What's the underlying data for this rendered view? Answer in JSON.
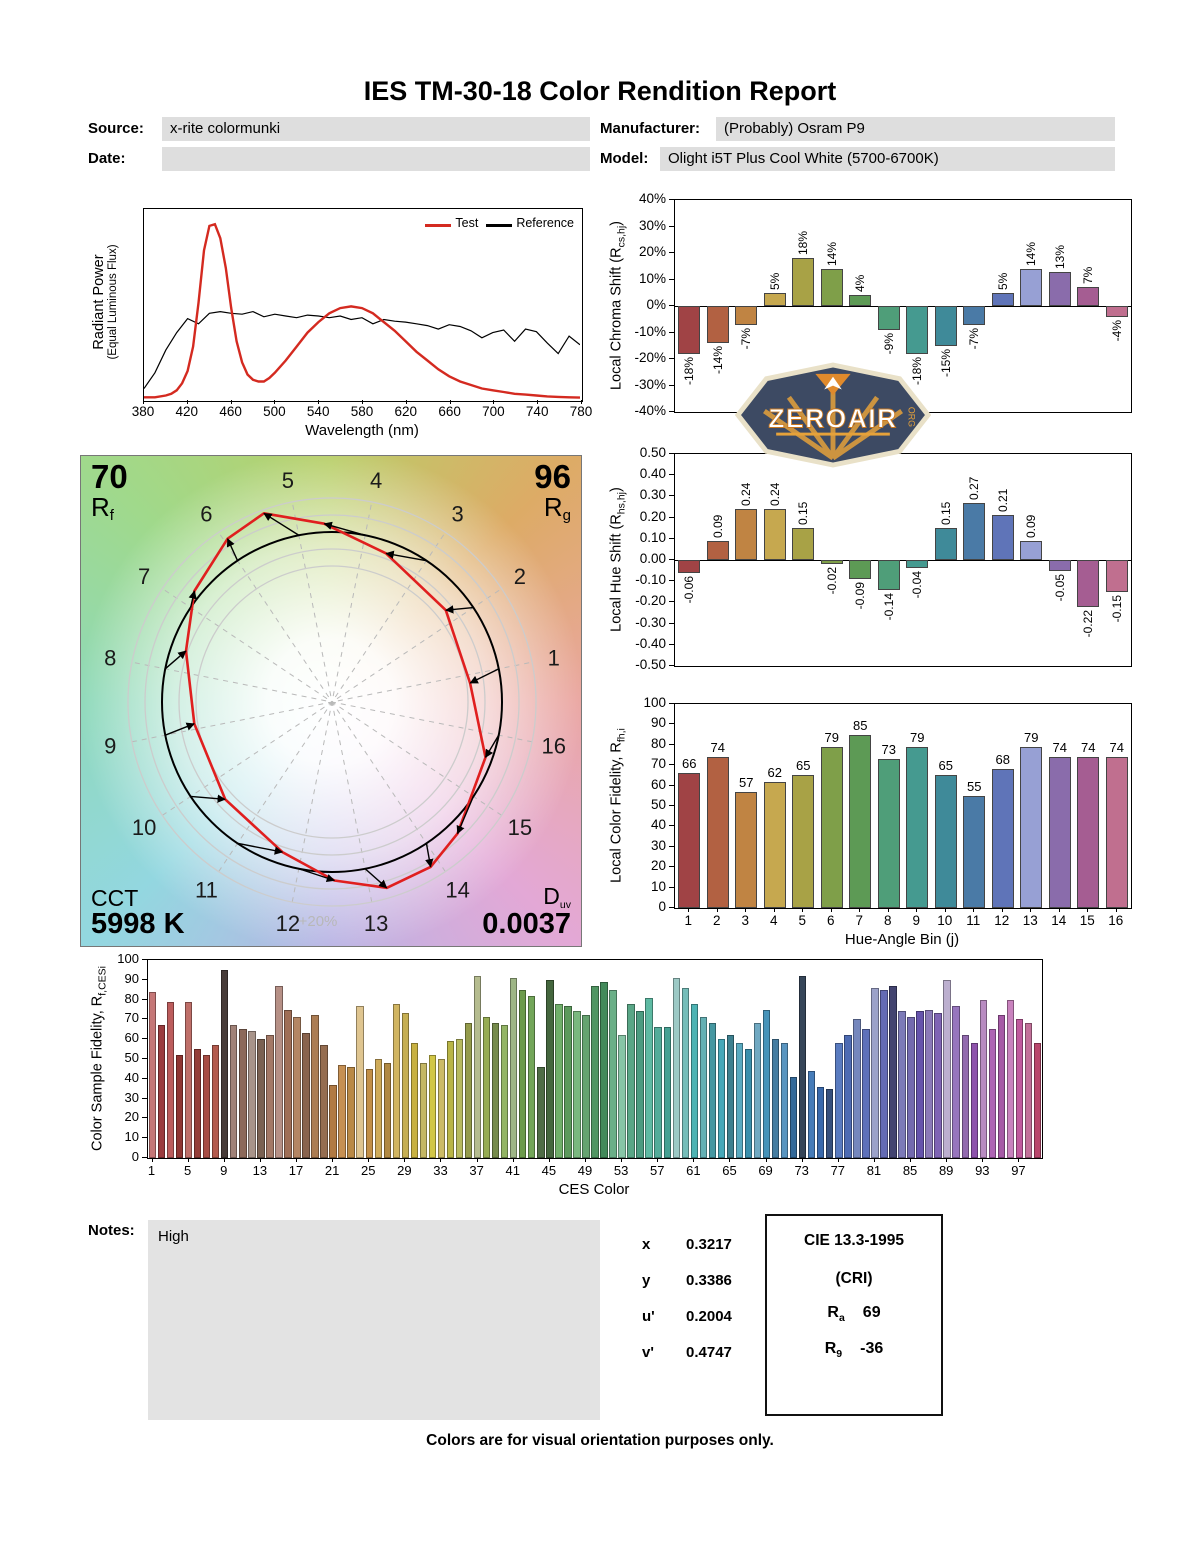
{
  "title": "IES TM-30-18 Color Rendition Report",
  "header": {
    "source_label": "Source:",
    "source_value": "x-rite colormunki",
    "manufacturer_label": "Manufacturer:",
    "manufacturer_value": "(Probably) Osram P9",
    "date_label": "Date:",
    "date_value": "",
    "model_label": "Model:",
    "model_value": "Olight i5T Plus Cool White (5700-6700K)"
  },
  "logo": {
    "wordmark": "ZEROAIR",
    "tld": "ORG"
  },
  "cvg": {
    "rf_value": "70",
    "rf_main": "R",
    "rf_sub": "f",
    "rg_value": "96",
    "rg_main": "R",
    "rg_sub": "g",
    "cct_label": "CCT",
    "cct_value": "5998 K",
    "duv_main": "D",
    "duv_sub": "uv",
    "duv_value": "0.0037",
    "ring_label": "+20%",
    "bin_numbers": [
      "1",
      "2",
      "3",
      "4",
      "5",
      "6",
      "7",
      "8",
      "9",
      "10",
      "11",
      "12",
      "13",
      "14",
      "15",
      "16"
    ]
  },
  "chart_data": [
    {
      "id": "spd",
      "type": "line",
      "ylabel": "Radiant Power",
      "ylabel2": "(Equal Luminous Flux)",
      "xlabel": "Wavelength (nm)",
      "xlim": [
        380,
        780
      ],
      "xticks": [
        "380",
        "420",
        "460",
        "500",
        "540",
        "580",
        "620",
        "660",
        "700",
        "740",
        "780"
      ],
      "legend": [
        {
          "label": "Test",
          "color": "#d42a20"
        },
        {
          "label": "Reference",
          "color": "#000000"
        }
      ],
      "series": [
        {
          "name": "Reference",
          "color": "#000000",
          "width": 1.2,
          "x": [
            380,
            390,
            400,
            410,
            420,
            430,
            440,
            450,
            460,
            470,
            480,
            490,
            500,
            510,
            520,
            530,
            540,
            550,
            560,
            570,
            580,
            590,
            600,
            610,
            620,
            630,
            640,
            650,
            660,
            670,
            680,
            690,
            700,
            710,
            720,
            730,
            740,
            750,
            760,
            770,
            780
          ],
          "y": [
            0.06,
            0.15,
            0.28,
            0.38,
            0.46,
            0.43,
            0.49,
            0.5,
            0.49,
            0.485,
            0.5,
            0.47,
            0.485,
            0.475,
            0.465,
            0.48,
            0.475,
            0.465,
            0.475,
            0.455,
            0.465,
            0.43,
            0.455,
            0.445,
            0.44,
            0.43,
            0.42,
            0.4,
            0.425,
            0.415,
            0.39,
            0.35,
            0.38,
            0.395,
            0.33,
            0.4,
            0.385,
            0.32,
            0.26,
            0.36,
            0.31
          ]
        },
        {
          "name": "Test",
          "color": "#d42a20",
          "width": 2.4,
          "x": [
            380,
            390,
            400,
            405,
            410,
            415,
            420,
            425,
            430,
            435,
            440,
            445,
            450,
            455,
            460,
            465,
            470,
            475,
            480,
            485,
            490,
            495,
            500,
            510,
            520,
            530,
            540,
            550,
            560,
            570,
            580,
            590,
            600,
            610,
            620,
            630,
            640,
            650,
            660,
            670,
            680,
            690,
            700,
            710,
            720,
            730,
            740,
            750,
            760,
            770,
            780
          ],
          "y": [
            0.01,
            0.01,
            0.02,
            0.03,
            0.05,
            0.09,
            0.16,
            0.3,
            0.55,
            0.85,
            0.99,
            1.0,
            0.92,
            0.75,
            0.52,
            0.33,
            0.21,
            0.14,
            0.11,
            0.1,
            0.1,
            0.12,
            0.15,
            0.22,
            0.3,
            0.38,
            0.44,
            0.49,
            0.52,
            0.53,
            0.52,
            0.49,
            0.44,
            0.39,
            0.33,
            0.27,
            0.22,
            0.17,
            0.13,
            0.1,
            0.08,
            0.06,
            0.05,
            0.04,
            0.03,
            0.025,
            0.02,
            0.015,
            0.012,
            0.01,
            0.008
          ]
        }
      ]
    },
    {
      "id": "chroma_shift",
      "type": "bar",
      "ylabel_pre": "Local Chroma Shift (R",
      "ylabel_sub": "cs,hj",
      "ylabel_post": ")",
      "ylim": [
        -40,
        40
      ],
      "yticks": [
        "40%",
        "30%",
        "20%",
        "10%",
        "0%",
        "-10%",
        "-20%",
        "-30%",
        "-40%"
      ],
      "categories": [
        "1",
        "2",
        "3",
        "4",
        "5",
        "6",
        "7",
        "8",
        "9",
        "10",
        "11",
        "12",
        "13",
        "14",
        "15",
        "16"
      ],
      "values": [
        -18,
        -14,
        -7,
        5,
        18,
        14,
        4,
        -9,
        -18,
        -15,
        -7,
        5,
        14,
        13,
        7,
        -4
      ],
      "labels": [
        "-18%",
        "-14%",
        "-7%",
        "5%",
        "18%",
        "14%",
        "4%",
        "-9%",
        "-18%",
        "-15%",
        "-7%",
        "5%",
        "14%",
        "13%",
        "7%",
        "-4%"
      ],
      "colors": [
        "#a04345",
        "#b26142",
        "#c08443",
        "#c6a84f",
        "#a8a246",
        "#7f9f49",
        "#5d9a55",
        "#4f9e79",
        "#459a90",
        "#3f8a99",
        "#4a7aa6",
        "#5f74b8",
        "#97a0d4",
        "#8a6cab",
        "#a55d92",
        "#c06f8f"
      ]
    },
    {
      "id": "hue_shift",
      "type": "bar",
      "ylabel_pre": "Local Hue Shift (R",
      "ylabel_sub": "hs,hj",
      "ylabel_post": ")",
      "ylim": [
        -0.5,
        0.5
      ],
      "yticks": [
        "0.50",
        "0.40",
        "0.30",
        "0.20",
        "0.10",
        "0.00",
        "-0.10",
        "-0.20",
        "-0.30",
        "-0.40",
        "-0.50"
      ],
      "categories": [
        "1",
        "2",
        "3",
        "4",
        "5",
        "6",
        "7",
        "8",
        "9",
        "10",
        "11",
        "12",
        "13",
        "14",
        "15",
        "16"
      ],
      "values": [
        -0.06,
        0.09,
        0.24,
        0.24,
        0.15,
        -0.02,
        -0.09,
        -0.14,
        -0.04,
        0.15,
        0.27,
        0.21,
        0.09,
        -0.05,
        -0.22,
        -0.15
      ],
      "labels": [
        "-0.06",
        "0.09",
        "0.24",
        "0.24",
        "0.15",
        "-0.02",
        "-0.09",
        "-0.14",
        "-0.04",
        "0.15",
        "0.27",
        "0.21",
        "0.09",
        "-0.05",
        "-0.22",
        "-0.15"
      ],
      "colors": [
        "#a04345",
        "#b26142",
        "#c08443",
        "#c6a84f",
        "#a8a246",
        "#7f9f49",
        "#5d9a55",
        "#4f9e79",
        "#459a90",
        "#3f8a99",
        "#4a7aa6",
        "#5f74b8",
        "#97a0d4",
        "#8a6cab",
        "#a55d92",
        "#c06f8f"
      ]
    },
    {
      "id": "local_fidelity",
      "type": "bar",
      "ylabel_pre": "Local Color Fidelity, R",
      "ylabel_sub": "fh,i",
      "ylabel_post": "",
      "xlabel": "Hue-Angle Bin (j)",
      "ylim": [
        0,
        100
      ],
      "yticks": [
        "100",
        "90",
        "80",
        "70",
        "60",
        "50",
        "40",
        "30",
        "20",
        "10",
        "0"
      ],
      "xticks": [
        "1",
        "2",
        "3",
        "4",
        "5",
        "6",
        "7",
        "8",
        "9",
        "10",
        "11",
        "12",
        "13",
        "14",
        "15",
        "16"
      ],
      "values": [
        66,
        74,
        57,
        62,
        65,
        79,
        85,
        73,
        79,
        65,
        55,
        68,
        79,
        74,
        74,
        74
      ],
      "labels": [
        "66",
        "74",
        "57",
        "62",
        "65",
        "79",
        "85",
        "73",
        "79",
        "65",
        "55",
        "68",
        "79",
        "74",
        "74",
        "74"
      ],
      "colors": [
        "#a04345",
        "#b26142",
        "#c08443",
        "#c6a84f",
        "#a8a246",
        "#7f9f49",
        "#5d9a55",
        "#4f9e79",
        "#459a90",
        "#3f8a99",
        "#4a7aa6",
        "#5f74b8",
        "#97a0d4",
        "#8a6cab",
        "#a55d92",
        "#c06f8f"
      ]
    },
    {
      "id": "ces_fidelity",
      "type": "bar",
      "ylabel_pre": "Color Sample Fidelity, R",
      "ylabel_sub": "f,CESi",
      "ylabel_post": "",
      "xlabel": "CES Color",
      "ylim": [
        0,
        100
      ],
      "yticks": [
        "100",
        "90",
        "80",
        "70",
        "60",
        "50",
        "40",
        "30",
        "20",
        "10",
        "0"
      ],
      "xticks": [
        "1",
        "5",
        "9",
        "13",
        "17",
        "21",
        "25",
        "29",
        "33",
        "37",
        "41",
        "45",
        "49",
        "53",
        "57",
        "61",
        "65",
        "69",
        "73",
        "77",
        "81",
        "85",
        "89",
        "93",
        "97"
      ],
      "values": [
        84,
        67,
        79,
        52,
        79,
        55,
        52,
        57,
        95,
        67,
        65,
        64,
        60,
        62,
        87,
        75,
        71,
        63,
        72,
        57,
        37,
        47,
        46,
        77,
        45,
        50,
        48,
        78,
        73,
        58,
        48,
        52,
        50,
        59,
        60,
        68,
        92,
        71,
        68,
        67,
        91,
        85,
        82,
        46,
        90,
        78,
        77,
        74,
        72,
        87,
        89,
        85,
        62,
        78,
        74,
        81,
        66,
        66,
        91,
        86,
        78,
        71,
        68,
        60,
        62,
        58,
        55,
        68,
        75,
        60,
        58,
        41,
        92,
        44,
        36,
        35,
        58,
        62,
        70,
        65,
        86,
        85,
        87,
        74,
        71,
        74,
        75,
        73,
        90,
        77,
        62,
        58,
        80,
        65,
        72,
        80,
        70,
        68,
        58
      ],
      "colors": [
        "hsl(0,40%,62%)",
        "hsl(358,45%,42%)",
        "hsl(0,42%,55%)",
        "hsl(2,48%,38%)",
        "hsl(4,40%,58%)",
        "hsl(3,45%,40%)",
        "hsl(5,42%,46%)",
        "hsl(8,40%,50%)",
        "hsl(10,12%,25%)",
        "hsl(15,18%,55%)",
        "hsl(18,22%,45%)",
        "hsl(20,15%,60%)",
        "hsl(22,20%,40%)",
        "hsl(18,25%,52%)",
        "hsl(12,25%,62%)",
        "hsl(20,30%,48%)",
        "hsl(25,35%,55%)",
        "hsl(22,28%,42%)",
        "hsl(28,35%,50%)",
        "hsl(25,30%,45%)",
        "hsl(30,45%,48%)",
        "hsl(32,50%,55%)",
        "hsl(35,45%,50%)",
        "hsl(40,55%,72%)",
        "hsl(35,50%,52%)",
        "hsl(42,55%,58%)",
        "hsl(38,45%,48%)",
        "hsl(45,55%,60%)",
        "hsl(48,50%,55%)",
        "hsl(50,55%,52%)",
        "hsl(52,45%,58%)",
        "hsl(55,60%,55%)",
        "hsl(50,50%,60%)",
        "hsl(58,45%,50%)",
        "hsl(62,40%,55%)",
        "hsl(65,35%,45%)",
        "hsl(70,25%,65%)",
        "hsl(75,35%,50%)",
        "hsl(80,30%,42%)",
        "hsl(85,35%,55%)",
        "hsl(90,25%,62%)",
        "hsl(95,35%,45%)",
        "hsl(100,30%,50%)",
        "hsl(105,22%,35%)",
        "hsl(110,25%,32%)",
        "hsl(115,30%,55%)",
        "hsl(120,25%,48%)",
        "hsl(125,30%,60%)",
        "hsl(130,25%,52%)",
        "hsl(135,30%,45%)",
        "hsl(140,35%,40%)",
        "hsl(145,30%,55%)",
        "hsl(150,35%,65%)",
        "hsl(155,30%,50%)",
        "hsl(160,35%,45%)",
        "hsl(165,40%,55%)",
        "hsl(168,35%,50%)",
        "hsl(171,40%,45%)",
        "hsl(174,30%,70%)",
        "hsl(177,35%,60%)",
        "hsl(180,40%,50%)",
        "hsl(183,35%,55%)",
        "hsl(186,40%,45%)",
        "hsl(189,45%,50%)",
        "hsl(191,40%,40%)",
        "hsl(193,45%,55%)",
        "hsl(195,50%,45%)",
        "hsl(198,40%,60%)",
        "hsl(200,45%,50%)",
        "hsl(203,40%,45%)",
        "hsl(205,45%,55%)",
        "hsl(208,50%,40%)",
        "hsl(212,25%,28%)",
        "hsl(212,45%,50%)",
        "hsl(215,50%,45%)",
        "hsl(218,40%,35%)",
        "hsl(220,45%,55%)",
        "hsl(222,40%,50%)",
        "hsl(225,35%,60%)",
        "hsl(228,40%,55%)",
        "hsl(232,30%,70%)",
        "hsl(235,35%,55%)",
        "hsl(238,25%,35%)",
        "hsl(242,30%,60%)",
        "hsl(248,30%,55%)",
        "hsl(252,35%,50%)",
        "hsl(256,30%,60%)",
        "hsl(260,35%,55%)",
        "hsl(264,25%,75%)",
        "hsl(268,35%,60%)",
        "hsl(275,30%,55%)",
        "hsl(280,35%,50%)",
        "hsl(290,30%,65%)",
        "hsl(295,35%,55%)",
        "hsl(300,30%,50%)",
        "hsl(310,40%,65%)",
        "hsl(320,45%,55%)",
        "hsl(330,40%,60%)",
        "hsl(340,45%,50%)"
      ]
    }
  ],
  "notes": {
    "label": "Notes:",
    "text": "High"
  },
  "chromaticity": {
    "rows": [
      {
        "label": "x",
        "value": "0.3217"
      },
      {
        "label": "y",
        "value": "0.3386"
      },
      {
        "label": "u'",
        "value": "0.2004"
      },
      {
        "label": "v'",
        "value": "0.4747"
      }
    ]
  },
  "cri_box": {
    "title": "CIE 13.3-1995",
    "subtitle": "(CRI)",
    "rows": [
      {
        "main": "R",
        "sub": "a",
        "value": "69"
      },
      {
        "main": "R",
        "sub": "9",
        "value": "-36"
      }
    ]
  },
  "footer": "Colors are for visual orientation purposes only."
}
